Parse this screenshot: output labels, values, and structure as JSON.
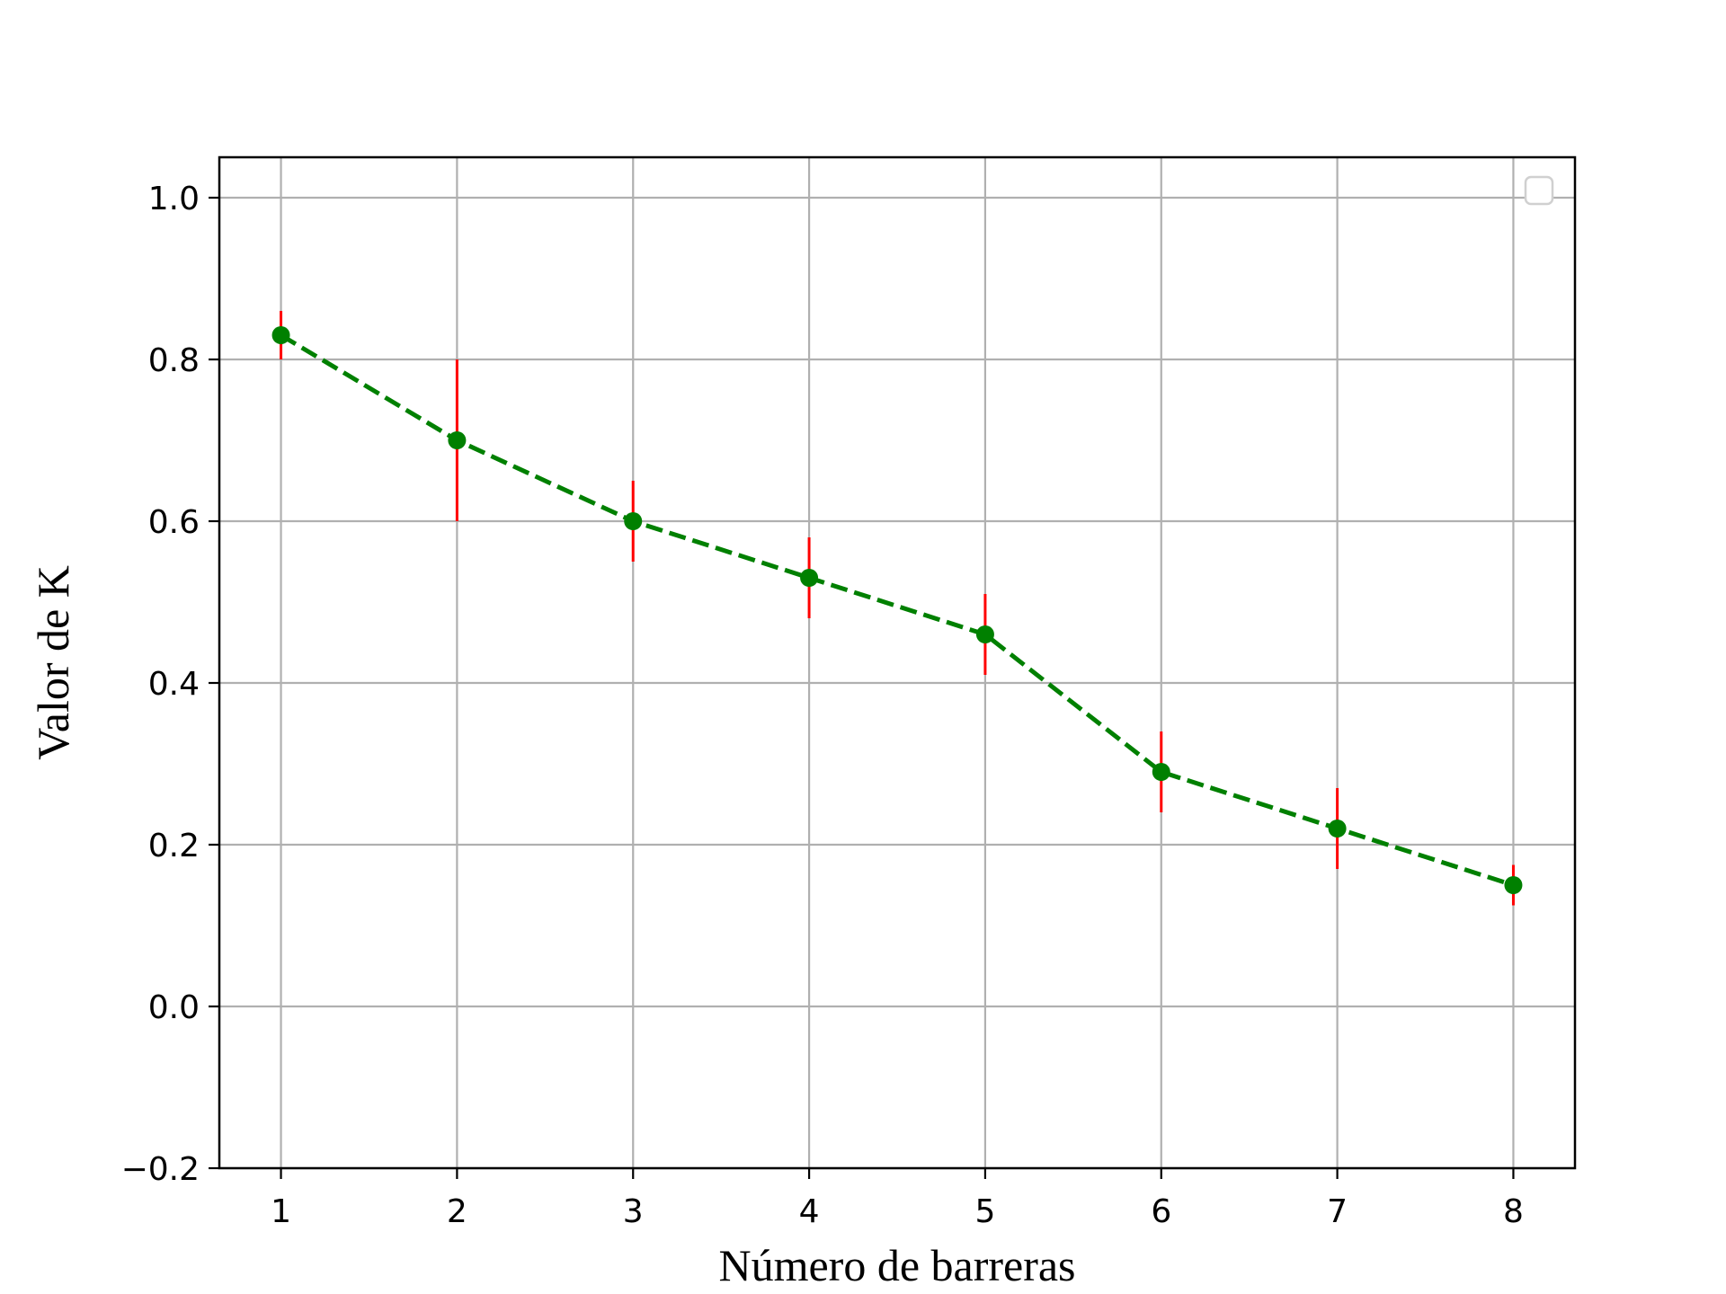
{
  "chart_data": {
    "type": "line",
    "title": "",
    "xlabel": "Número de barreras",
    "ylabel": "Valor de K",
    "x": [
      1,
      2,
      3,
      4,
      5,
      6,
      7,
      8
    ],
    "xlim": [
      0.65,
      8.35
    ],
    "ylim": [
      -0.2,
      1.05
    ],
    "xticks": [
      "1",
      "2",
      "3",
      "4",
      "5",
      "6",
      "7",
      "8"
    ],
    "yticks": [
      "−0.2",
      "0.0",
      "0.2",
      "0.4",
      "0.6",
      "0.8",
      "1.0"
    ],
    "ytick_values": [
      -0.2,
      0.0,
      0.2,
      0.4,
      0.6,
      0.8,
      1.0
    ],
    "grid": true,
    "legend": "top-right (empty)",
    "series": [
      {
        "values": [
          0.83,
          0.7,
          0.6,
          0.53,
          0.46,
          0.29,
          0.22,
          0.15
        ],
        "error": [
          0.03,
          0.1,
          0.05,
          0.05,
          0.05,
          0.05,
          0.05,
          0.025
        ],
        "line_style": "dashed",
        "marker": "circle",
        "color": "#008000",
        "error_color": "#ff0000"
      }
    ]
  }
}
